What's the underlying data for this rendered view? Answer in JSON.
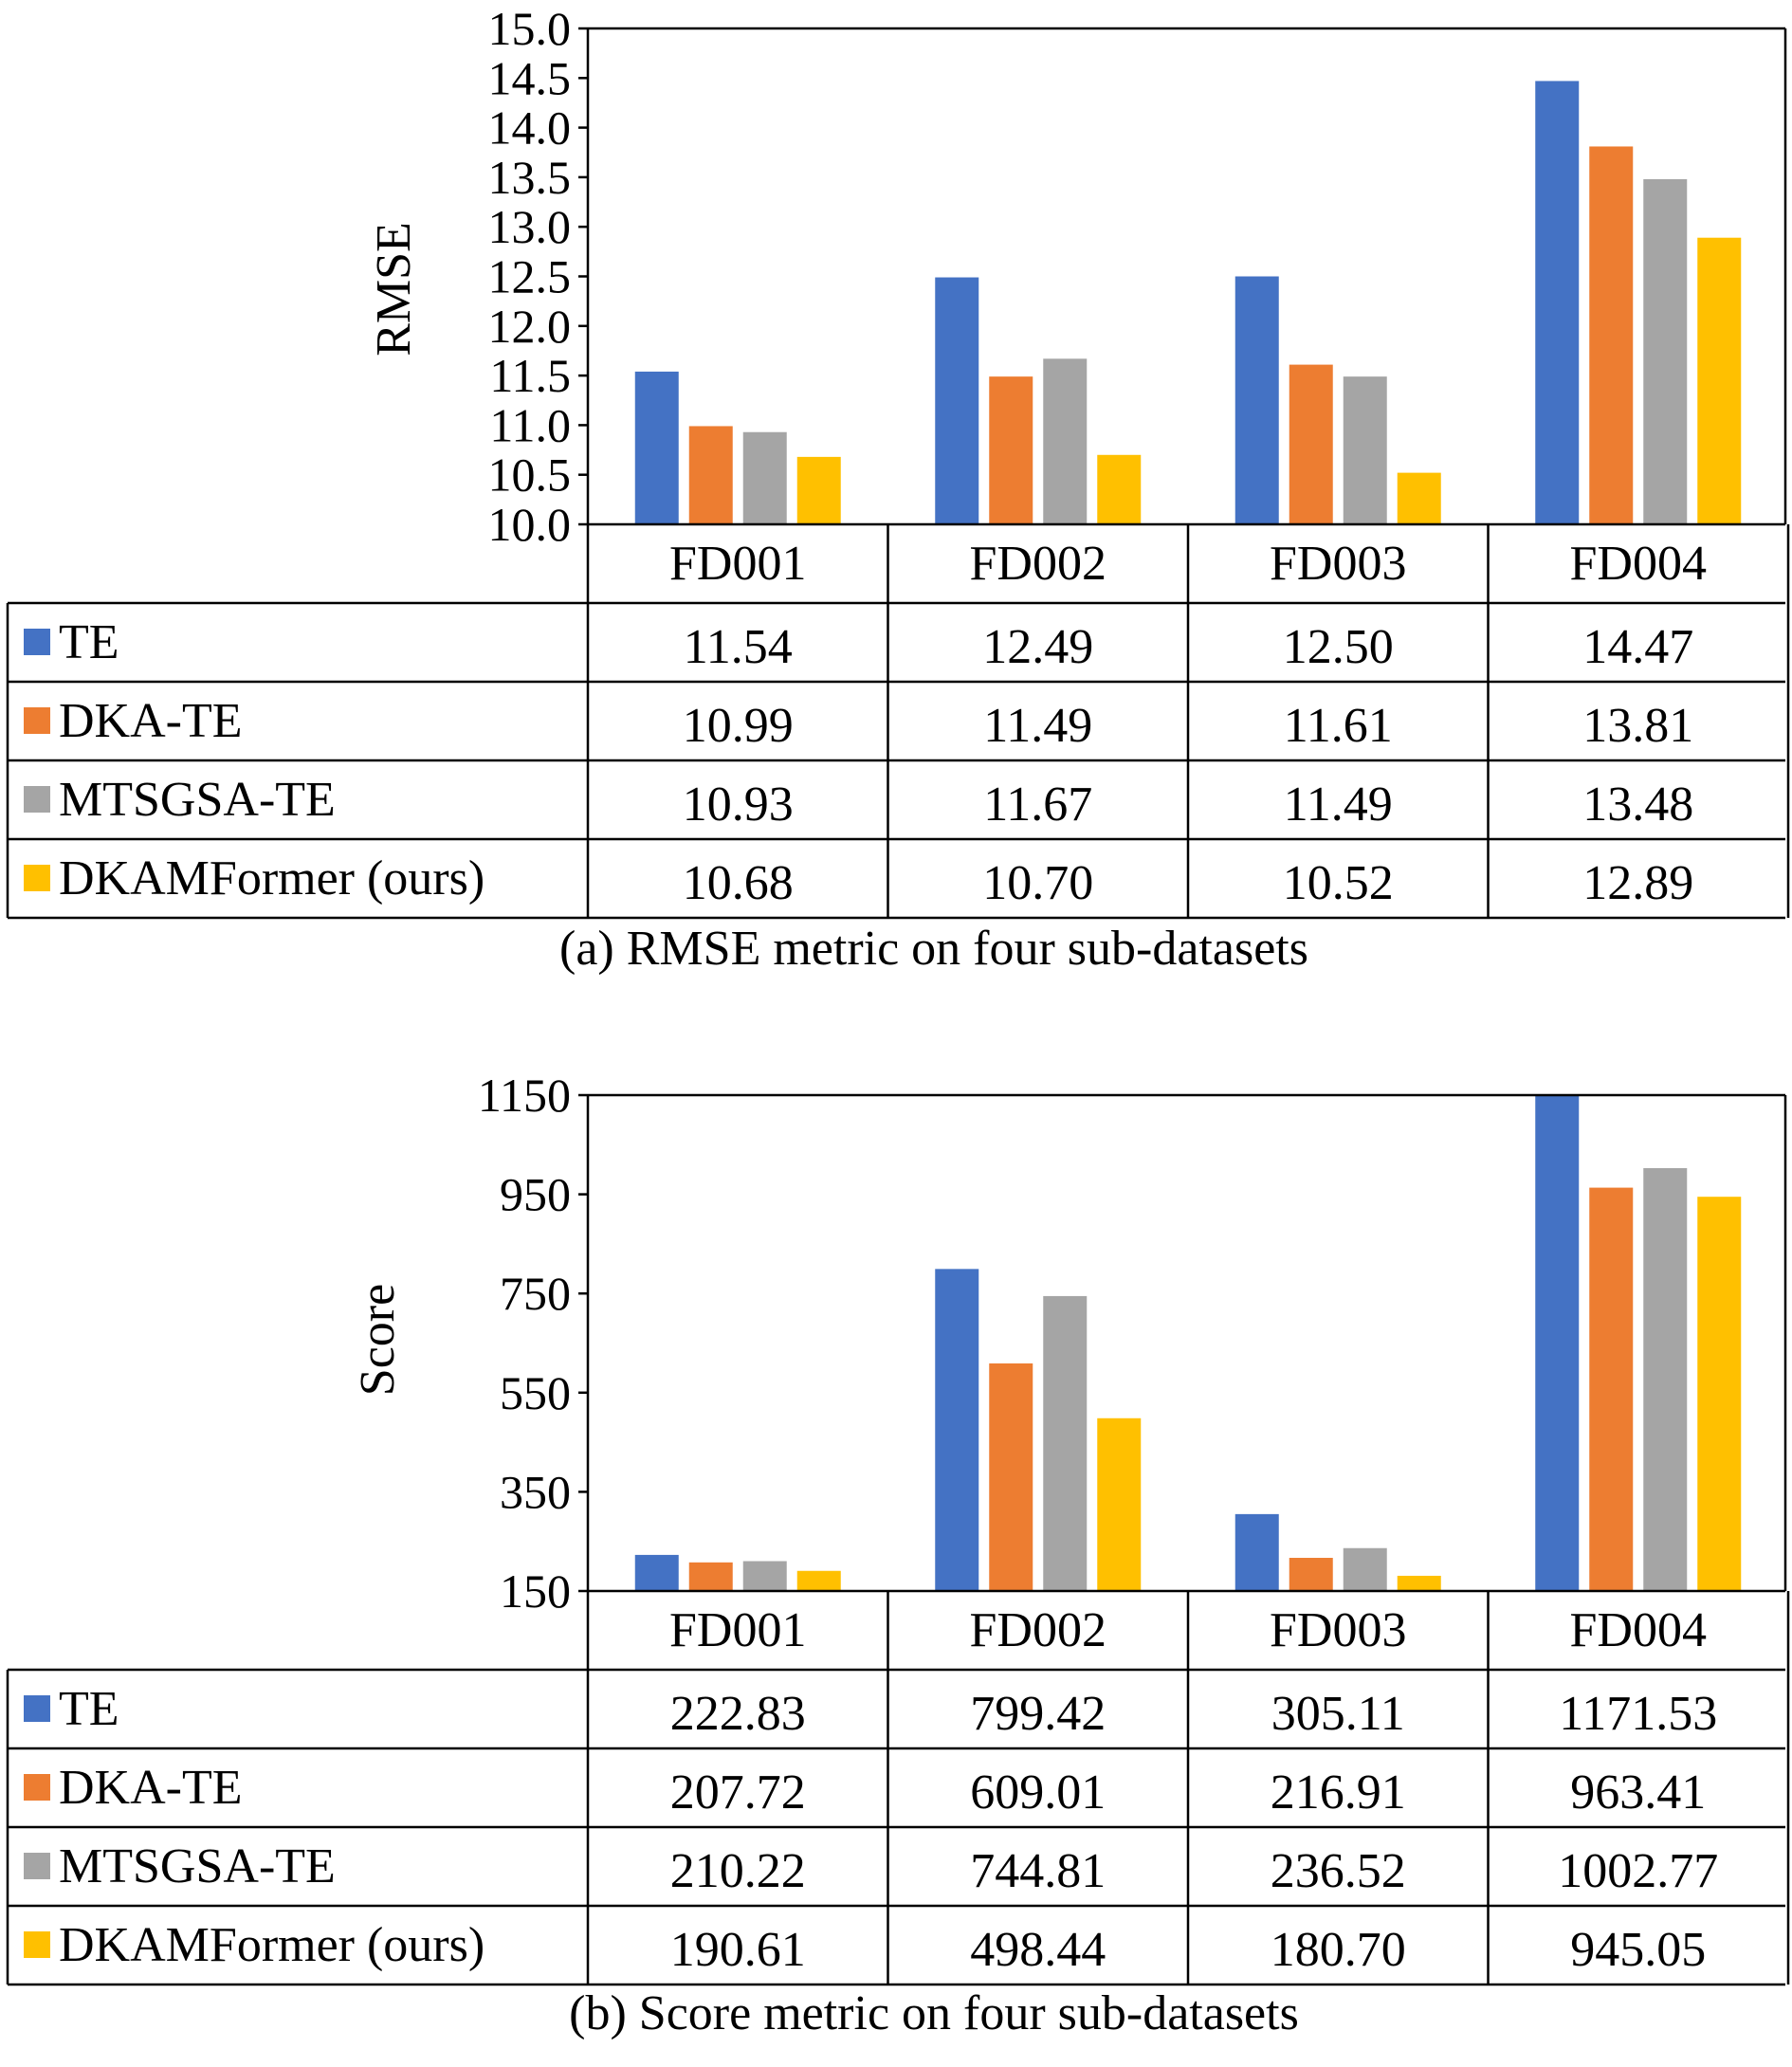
{
  "chart_data": [
    {
      "type": "bar",
      "with_data_table": true,
      "ylabel": "RMSE",
      "ylim": [
        10.0,
        15.0
      ],
      "ytick_step": 0.5,
      "yticks": [
        "10.0",
        "10.5",
        "11.0",
        "11.5",
        "12.0",
        "12.5",
        "13.0",
        "13.5",
        "14.0",
        "14.5",
        "15.0"
      ],
      "categories": [
        "FD001",
        "FD002",
        "FD003",
        "FD004"
      ],
      "series": [
        {
          "name": "TE",
          "color": "#4472C4",
          "values": [
            11.54,
            12.49,
            12.5,
            14.47
          ],
          "labels": [
            "11.54",
            "12.49",
            "12.50",
            "14.47"
          ]
        },
        {
          "name": "DKA-TE",
          "color": "#ED7D31",
          "values": [
            10.99,
            11.49,
            11.61,
            13.81
          ],
          "labels": [
            "10.99",
            "11.49",
            "11.61",
            "13.81"
          ]
        },
        {
          "name": "MTSGSA-TE",
          "color": "#A5A5A5",
          "values": [
            10.93,
            11.67,
            11.49,
            13.48
          ],
          "labels": [
            "10.93",
            "11.67",
            "11.49",
            "13.48"
          ]
        },
        {
          "name": "DKAMFormer (ours)",
          "color": "#FFC000",
          "values": [
            10.68,
            10.7,
            10.52,
            12.89
          ],
          "labels": [
            "10.68",
            "10.70",
            "10.52",
            "12.89"
          ]
        }
      ],
      "caption": "(a) RMSE metric on four sub-datasets"
    },
    {
      "type": "bar",
      "with_data_table": true,
      "ylabel": "Score",
      "ylim": [
        150,
        1150
      ],
      "ytick_step": 200,
      "yticks": [
        "150",
        "350",
        "550",
        "750",
        "950",
        "1150"
      ],
      "categories": [
        "FD001",
        "FD002",
        "FD003",
        "FD004"
      ],
      "series": [
        {
          "name": "TE",
          "color": "#4472C4",
          "values": [
            222.83,
            799.42,
            305.11,
            1171.53
          ],
          "labels": [
            "222.83",
            "799.42",
            "305.11",
            "1171.53"
          ]
        },
        {
          "name": "DKA-TE",
          "color": "#ED7D31",
          "values": [
            207.72,
            609.01,
            216.91,
            963.41
          ],
          "labels": [
            "207.72",
            "609.01",
            "216.91",
            "963.41"
          ]
        },
        {
          "name": "MTSGSA-TE",
          "color": "#A5A5A5",
          "values": [
            210.22,
            744.81,
            236.52,
            1002.77
          ],
          "labels": [
            "210.22",
            "744.81",
            "236.52",
            "1002.77"
          ]
        },
        {
          "name": "DKAMFormer (ours)",
          "color": "#FFC000",
          "values": [
            190.61,
            498.44,
            180.7,
            945.05
          ],
          "labels": [
            "190.61",
            "498.44",
            "180.70",
            "945.05"
          ]
        }
      ],
      "caption": "(b) Score metric on four sub-datasets"
    }
  ]
}
